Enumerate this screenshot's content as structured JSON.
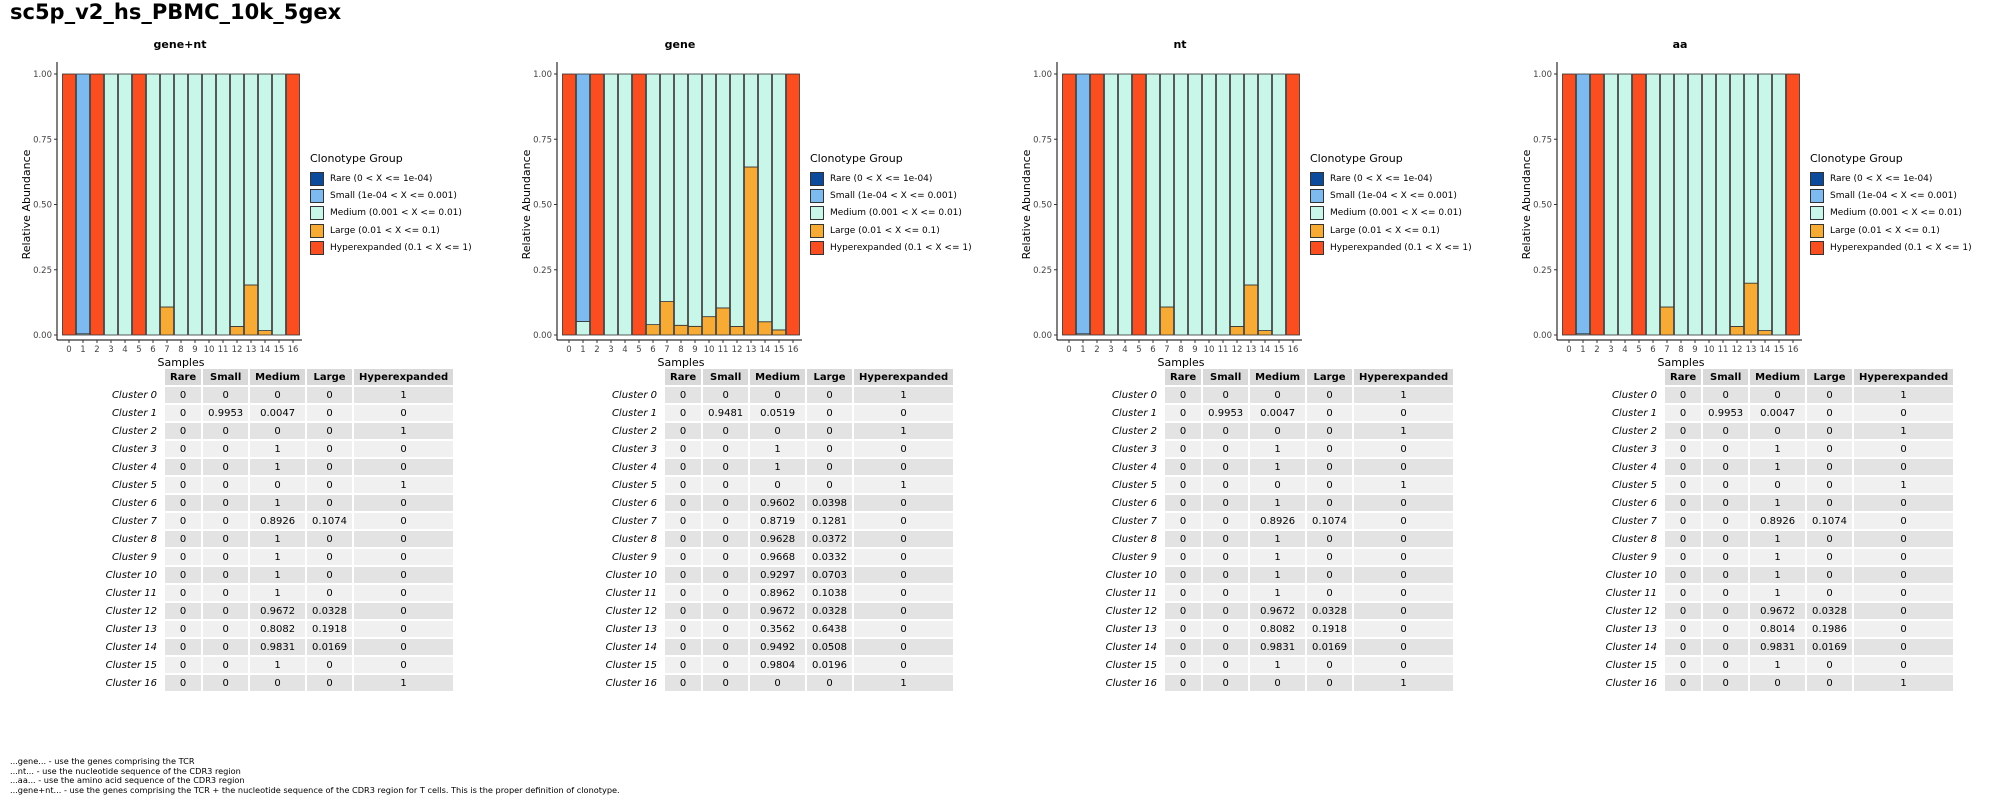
{
  "page_title": "sc5p_v2_hs_PBMC_10k_5gex",
  "legend": {
    "title": "Clonotype Group",
    "items": [
      {
        "label": "Rare (0 < X <= 1e-04)",
        "color": "#0c4a9c"
      },
      {
        "label": "Small (1e-04 < X <= 0.001)",
        "color": "#7cbaf0"
      },
      {
        "label": "Medium (0.001 < X <= 0.01)",
        "color": "#c8f7e9"
      },
      {
        "label": "Large (0.01 < X <= 0.1)",
        "color": "#f7ab34"
      },
      {
        "label": "Hyperexpanded (0.1 < X <= 1)",
        "color": "#fa4e21"
      }
    ]
  },
  "table_header": [
    "Rare",
    "Small",
    "Medium",
    "Large",
    "Hyperexpanded"
  ],
  "notes": [
    "...gene... - use the genes comprising the TCR",
    "...nt... - use the nucleotide sequence of the CDR3 region",
    "...aa... - use the amino acid sequence of the CDR3 region",
    "...gene+nt... - use the genes comprising the TCR + the nucleotide sequence of the CDR3 region for T cells. This is the proper definition of clonotype."
  ],
  "chart_data": [
    {
      "type": "bar",
      "title": "gene+nt",
      "xlabel": "Samples",
      "ylabel": "Relative Abundance",
      "ylim": [
        0,
        1
      ],
      "yticks": [
        "0.00",
        "0.25",
        "0.50",
        "0.75",
        "1.00"
      ],
      "categories": [
        "0",
        "1",
        "2",
        "3",
        "4",
        "5",
        "6",
        "7",
        "8",
        "9",
        "10",
        "11",
        "12",
        "13",
        "14",
        "15",
        "16"
      ],
      "row_labels": [
        "Cluster 0",
        "Cluster 1",
        "Cluster 2",
        "Cluster 3",
        "Cluster 4",
        "Cluster 5",
        "Cluster 6",
        "Cluster 7",
        "Cluster 8",
        "Cluster 9",
        "Cluster 10",
        "Cluster 11",
        "Cluster 12",
        "Cluster 13",
        "Cluster 14",
        "Cluster 15",
        "Cluster 16"
      ],
      "series": [
        {
          "name": "Rare",
          "values": [
            "0",
            "0",
            "0",
            "0",
            "0",
            "0",
            "0",
            "0",
            "0",
            "0",
            "0",
            "0",
            "0",
            "0",
            "0",
            "0",
            "0"
          ]
        },
        {
          "name": "Small",
          "values": [
            "0",
            "0.9953",
            "0",
            "0",
            "0",
            "0",
            "0",
            "0",
            "0",
            "0",
            "0",
            "0",
            "0",
            "0",
            "0",
            "0",
            "0"
          ]
        },
        {
          "name": "Medium",
          "values": [
            "0",
            "0.0047",
            "0",
            "1",
            "1",
            "0",
            "1",
            "0.8926",
            "1",
            "1",
            "1",
            "1",
            "0.9672",
            "0.8082",
            "0.9831",
            "1",
            "0"
          ]
        },
        {
          "name": "Large",
          "values": [
            "0",
            "0",
            "0",
            "0",
            "0",
            "0",
            "0",
            "0.1074",
            "0",
            "0",
            "0",
            "0",
            "0.0328",
            "0.1918",
            "0.0169",
            "0",
            "0"
          ]
        },
        {
          "name": "Hyperexpanded",
          "values": [
            "1",
            "0",
            "1",
            "0",
            "0",
            "1",
            "0",
            "0",
            "0",
            "0",
            "0",
            "0",
            "0",
            "0",
            "0",
            "0",
            "1"
          ]
        }
      ]
    },
    {
      "type": "bar",
      "title": "gene",
      "xlabel": "Samples",
      "ylabel": "Relative Abundance",
      "ylim": [
        0,
        1
      ],
      "yticks": [
        "0.00",
        "0.25",
        "0.50",
        "0.75",
        "1.00"
      ],
      "categories": [
        "0",
        "1",
        "2",
        "3",
        "4",
        "5",
        "6",
        "7",
        "8",
        "9",
        "10",
        "11",
        "12",
        "13",
        "14",
        "15",
        "16"
      ],
      "row_labels": [
        "Cluster 0",
        "Cluster 1",
        "Cluster 2",
        "Cluster 3",
        "Cluster 4",
        "Cluster 5",
        "Cluster 6",
        "Cluster 7",
        "Cluster 8",
        "Cluster 9",
        "Cluster 10",
        "Cluster 11",
        "Cluster 12",
        "Cluster 13",
        "Cluster 14",
        "Cluster 15",
        "Cluster 16"
      ],
      "series": [
        {
          "name": "Rare",
          "values": [
            "0",
            "0",
            "0",
            "0",
            "0",
            "0",
            "0",
            "0",
            "0",
            "0",
            "0",
            "0",
            "0",
            "0",
            "0",
            "0",
            "0"
          ]
        },
        {
          "name": "Small",
          "values": [
            "0",
            "0.9481",
            "0",
            "0",
            "0",
            "0",
            "0",
            "0",
            "0",
            "0",
            "0",
            "0",
            "0",
            "0",
            "0",
            "0",
            "0"
          ]
        },
        {
          "name": "Medium",
          "values": [
            "0",
            "0.0519",
            "0",
            "1",
            "1",
            "0",
            "0.9602",
            "0.8719",
            "0.9628",
            "0.9668",
            "0.9297",
            "0.8962",
            "0.9672",
            "0.3562",
            "0.9492",
            "0.9804",
            "0"
          ]
        },
        {
          "name": "Large",
          "values": [
            "0",
            "0",
            "0",
            "0",
            "0",
            "0",
            "0.0398",
            "0.1281",
            "0.0372",
            "0.0332",
            "0.0703",
            "0.1038",
            "0.0328",
            "0.6438",
            "0.0508",
            "0.0196",
            "0"
          ]
        },
        {
          "name": "Hyperexpanded",
          "values": [
            "1",
            "0",
            "1",
            "0",
            "0",
            "1",
            "0",
            "0",
            "0",
            "0",
            "0",
            "0",
            "0",
            "0",
            "0",
            "0",
            "1"
          ]
        }
      ]
    },
    {
      "type": "bar",
      "title": "nt",
      "xlabel": "Samples",
      "ylabel": "Relative Abundance",
      "ylim": [
        0,
        1
      ],
      "yticks": [
        "0.00",
        "0.25",
        "0.50",
        "0.75",
        "1.00"
      ],
      "categories": [
        "0",
        "1",
        "2",
        "3",
        "4",
        "5",
        "6",
        "7",
        "8",
        "9",
        "10",
        "11",
        "12",
        "13",
        "14",
        "15",
        "16"
      ],
      "row_labels": [
        "Cluster 0",
        "Cluster 1",
        "Cluster 2",
        "Cluster 3",
        "Cluster 4",
        "Cluster 5",
        "Cluster 6",
        "Cluster 7",
        "Cluster 8",
        "Cluster 9",
        "Cluster 10",
        "Cluster 11",
        "Cluster 12",
        "Cluster 13",
        "Cluster 14",
        "Cluster 15",
        "Cluster 16"
      ],
      "series": [
        {
          "name": "Rare",
          "values": [
            "0",
            "0",
            "0",
            "0",
            "0",
            "0",
            "0",
            "0",
            "0",
            "0",
            "0",
            "0",
            "0",
            "0",
            "0",
            "0",
            "0"
          ]
        },
        {
          "name": "Small",
          "values": [
            "0",
            "0.9953",
            "0",
            "0",
            "0",
            "0",
            "0",
            "0",
            "0",
            "0",
            "0",
            "0",
            "0",
            "0",
            "0",
            "0",
            "0"
          ]
        },
        {
          "name": "Medium",
          "values": [
            "0",
            "0.0047",
            "0",
            "1",
            "1",
            "0",
            "1",
            "0.8926",
            "1",
            "1",
            "1",
            "1",
            "0.9672",
            "0.8082",
            "0.9831",
            "1",
            "0"
          ]
        },
        {
          "name": "Large",
          "values": [
            "0",
            "0",
            "0",
            "0",
            "0",
            "0",
            "0",
            "0.1074",
            "0",
            "0",
            "0",
            "0",
            "0.0328",
            "0.1918",
            "0.0169",
            "0",
            "0"
          ]
        },
        {
          "name": "Hyperexpanded",
          "values": [
            "1",
            "0",
            "1",
            "0",
            "0",
            "1",
            "0",
            "0",
            "0",
            "0",
            "0",
            "0",
            "0",
            "0",
            "0",
            "0",
            "1"
          ]
        }
      ]
    },
    {
      "type": "bar",
      "title": "aa",
      "xlabel": "Samples",
      "ylabel": "Relative Abundance",
      "ylim": [
        0,
        1
      ],
      "yticks": [
        "0.00",
        "0.25",
        "0.50",
        "0.75",
        "1.00"
      ],
      "categories": [
        "0",
        "1",
        "2",
        "3",
        "4",
        "5",
        "6",
        "7",
        "8",
        "9",
        "10",
        "11",
        "12",
        "13",
        "14",
        "15",
        "16"
      ],
      "row_labels": [
        "Cluster 0",
        "Cluster 1",
        "Cluster 2",
        "Cluster 3",
        "Cluster 4",
        "Cluster 5",
        "Cluster 6",
        "Cluster 7",
        "Cluster 8",
        "Cluster 9",
        "Cluster 10",
        "Cluster 11",
        "Cluster 12",
        "Cluster 13",
        "Cluster 14",
        "Cluster 15",
        "Cluster 16"
      ],
      "series": [
        {
          "name": "Rare",
          "values": [
            "0",
            "0",
            "0",
            "0",
            "0",
            "0",
            "0",
            "0",
            "0",
            "0",
            "0",
            "0",
            "0",
            "0",
            "0",
            "0",
            "0"
          ]
        },
        {
          "name": "Small",
          "values": [
            "0",
            "0.9953",
            "0",
            "0",
            "0",
            "0",
            "0",
            "0",
            "0",
            "0",
            "0",
            "0",
            "0",
            "0",
            "0",
            "0",
            "0"
          ]
        },
        {
          "name": "Medium",
          "values": [
            "0",
            "0.0047",
            "0",
            "1",
            "1",
            "0",
            "1",
            "0.8926",
            "1",
            "1",
            "1",
            "1",
            "0.9672",
            "0.8014",
            "0.9831",
            "1",
            "0"
          ]
        },
        {
          "name": "Large",
          "values": [
            "0",
            "0",
            "0",
            "0",
            "0",
            "0",
            "0",
            "0.1074",
            "0",
            "0",
            "0",
            "0",
            "0.0328",
            "0.1986",
            "0.0169",
            "0",
            "0"
          ]
        },
        {
          "name": "Hyperexpanded",
          "values": [
            "1",
            "0",
            "1",
            "0",
            "0",
            "1",
            "0",
            "0",
            "0",
            "0",
            "0",
            "0",
            "0",
            "0",
            "0",
            "0",
            "1"
          ]
        }
      ]
    }
  ]
}
